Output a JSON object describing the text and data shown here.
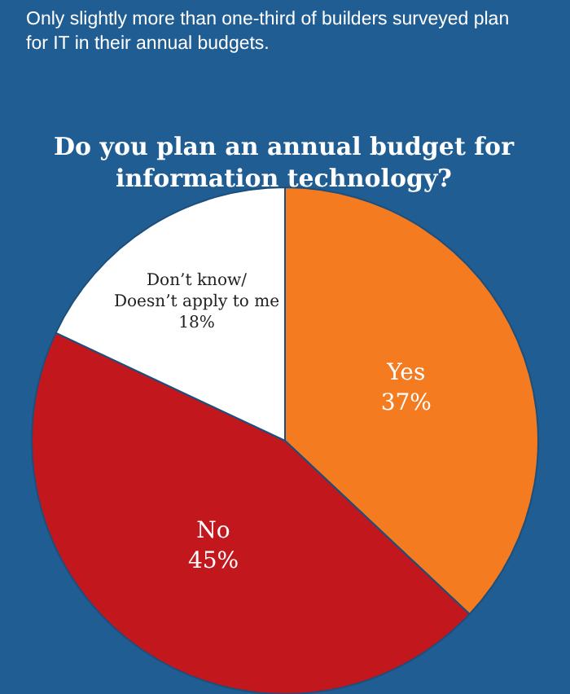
{
  "chart_data": {
    "type": "pie",
    "subtitle": "Only slightly more than one-third of builders surveyed plan for IT in their annual budgets.",
    "title": "Do you plan an annual budget for information technology?",
    "categories": [
      "Yes",
      "No",
      "Don’t know/\nDoesn’t apply to me"
    ],
    "values": [
      37,
      45,
      18
    ],
    "value_labels": [
      "37%",
      "45%",
      "18%"
    ],
    "colors": [
      "#f47b20",
      "#c1171d",
      "#ffffff"
    ],
    "legend": false
  }
}
